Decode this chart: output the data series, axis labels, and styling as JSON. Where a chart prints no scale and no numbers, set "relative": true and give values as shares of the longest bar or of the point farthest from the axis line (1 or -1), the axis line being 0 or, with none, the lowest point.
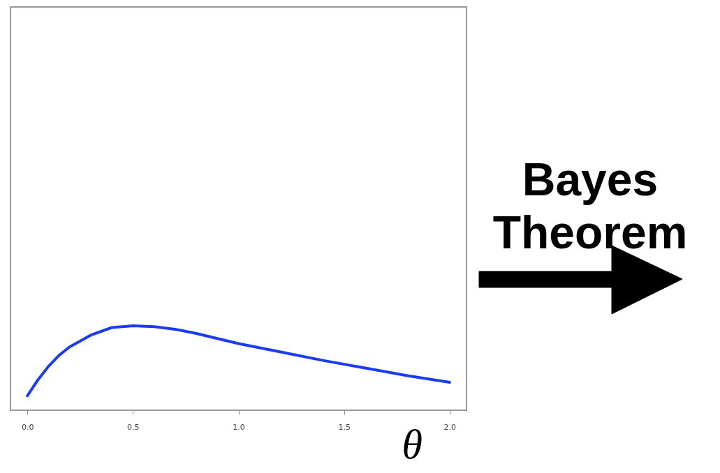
{
  "chart_data": {
    "type": "line",
    "relative": true,
    "xlabel": "θ",
    "x": [
      0,
      0.05,
      0.1,
      0.15,
      0.2,
      0.3,
      0.4,
      0.5,
      0.6,
      0.7,
      0.8,
      0.9,
      1.0,
      1.2,
      1.4,
      1.6,
      1.8,
      2.0
    ],
    "series": [
      {
        "color": "#1a3cf5",
        "values": [
          0.17,
          0.36,
          0.52,
          0.65,
          0.75,
          0.89,
          0.98,
          1.0,
          0.99,
          0.96,
          0.91,
          0.85,
          0.79,
          0.69,
          0.59,
          0.5,
          0.41,
          0.33
        ]
      }
    ],
    "xlim": [
      -0.08,
      2.08
    ],
    "xticks": [
      {
        "value": 0,
        "label": "0.0"
      },
      {
        "value": 0.5,
        "label": "0.5"
      },
      {
        "value": 1,
        "label": "1.0"
      },
      {
        "value": 1.5,
        "label": "1.5"
      },
      {
        "value": 2,
        "label": "2.0"
      }
    ],
    "grid": false,
    "marker": "none",
    "line_style": "solid",
    "annotations": [
      "Bayes Theorem"
    ]
  }
}
